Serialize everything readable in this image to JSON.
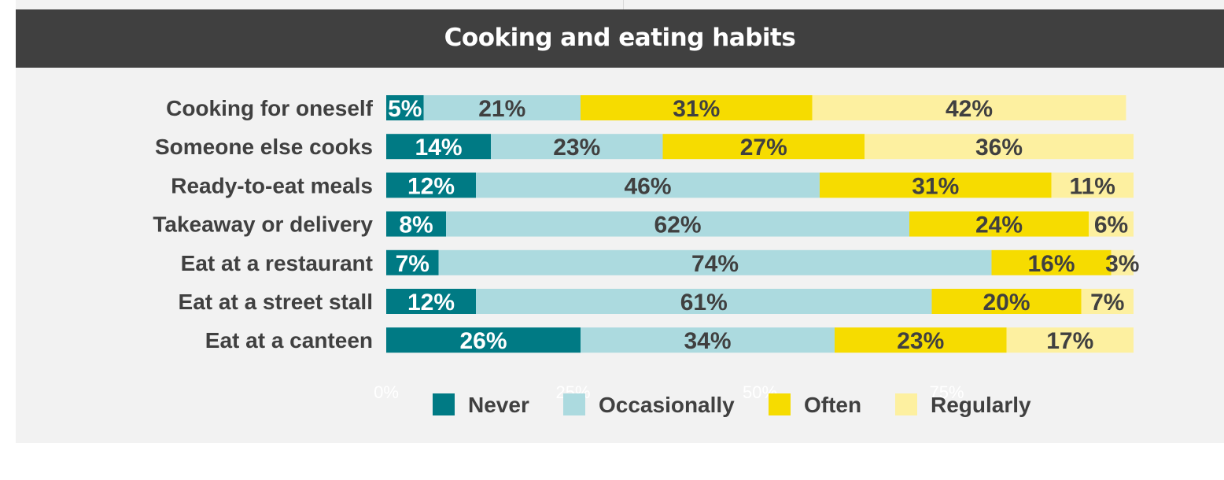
{
  "chart_data": {
    "type": "bar",
    "orientation": "horizontal",
    "stacked": true,
    "title": "Cooking and eating habits",
    "categories": [
      "Cooking for oneself",
      "Someone else cooks",
      "Ready-to-eat meals",
      "Takeaway or delivery",
      "Eat at a restaurant",
      "Eat at a street stall",
      "Eat at a canteen"
    ],
    "series": [
      {
        "name": "Never",
        "color": "#007a84",
        "label_color": "#ffffff",
        "values": [
          5,
          14,
          12,
          8,
          7,
          12,
          26
        ]
      },
      {
        "name": "Occasionally",
        "color": "#acdadf",
        "label_color": "#404040",
        "values": [
          21,
          23,
          46,
          62,
          74,
          61,
          34
        ]
      },
      {
        "name": "Often",
        "color": "#f6dc00",
        "label_color": "#404040",
        "values": [
          31,
          27,
          31,
          24,
          16,
          20,
          23
        ]
      },
      {
        "name": "Regularly",
        "color": "#fdf0a0",
        "label_color": "#404040",
        "values": [
          42,
          36,
          11,
          6,
          3,
          7,
          17
        ]
      }
    ],
    "xlim": [
      0,
      100
    ],
    "x_ticks": [
      "0%",
      "25%",
      "50%",
      "75%"
    ],
    "legend_position": "bottom",
    "xlabel": "",
    "ylabel": ""
  }
}
